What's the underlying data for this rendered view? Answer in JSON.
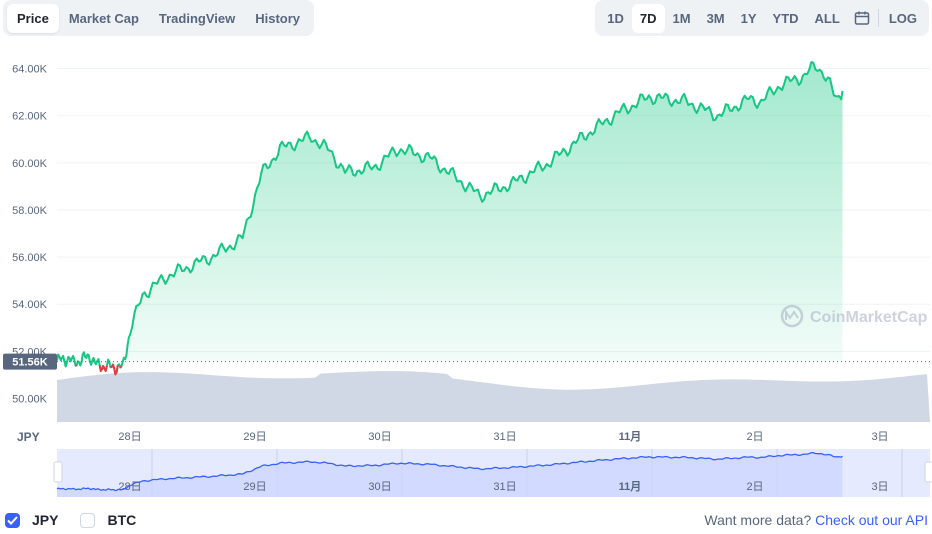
{
  "tabs": [
    "Price",
    "Market Cap",
    "TradingView",
    "History"
  ],
  "active_tab": "Price",
  "ranges": [
    "1D",
    "7D",
    "1M",
    "3M",
    "1Y",
    "YTD",
    "ALL"
  ],
  "active_range": "7D",
  "calendar_icon": "calendar-icon",
  "log_label": "LOG",
  "y_axis_ticks": [
    "50.00K",
    "52.00K",
    "54.00K",
    "56.00K",
    "58.00K",
    "60.00K",
    "62.00K",
    "64.00K"
  ],
  "current_price_label": "51.56K",
  "currency_label": "JPY",
  "watermark": "CoinMarketCap",
  "legend": [
    {
      "label": "JPY",
      "checked": true
    },
    {
      "label": "BTC",
      "checked": false
    }
  ],
  "api_text": "Want more data?",
  "api_link": "Check out our API",
  "colors": {
    "up": "#16c784",
    "down": "#ea3943",
    "accent": "#3861fb",
    "volume": "#cfd6e4"
  },
  "chart_data": {
    "type": "area",
    "x_ticks": [
      "28日",
      "29日",
      "30日",
      "31日",
      "11月",
      "2日",
      "3日"
    ],
    "ylim": [
      49000,
      65000
    ],
    "price_x": [
      0,
      0.05,
      0.1,
      0.15,
      0.2,
      0.25,
      0.3,
      0.35,
      0.4,
      0.45,
      0.5,
      0.55,
      0.6,
      0.65,
      0.7,
      0.75,
      0.8,
      0.85,
      0.9,
      0.95,
      1,
      1.05,
      1.1,
      1.15,
      1.2,
      1.25,
      1.3,
      1.35,
      1.4,
      1.45,
      1.5,
      1.55,
      1.6,
      1.65,
      1.7,
      1.75,
      1.8,
      1.85,
      1.9,
      1.95,
      2,
      2.05,
      2.1,
      2.15,
      2.2,
      2.25,
      2.3,
      2.35,
      2.4,
      2.45,
      2.5,
      2.55,
      2.6,
      2.65,
      2.7,
      2.75,
      2.8,
      2.85,
      2.9,
      2.95,
      3,
      3.05,
      3.1,
      3.15,
      3.2,
      3.25,
      3.3,
      3.35,
      3.4,
      3.45,
      3.5,
      3.55,
      3.6,
      3.65,
      3.7,
      3.75,
      3.8,
      3.85,
      3.9,
      3.95,
      4,
      4.05,
      4.1,
      4.15,
      4.2,
      4.25,
      4.3,
      4.35,
      4.4,
      4.45,
      4.5,
      4.55,
      4.6,
      4.65,
      4.7,
      4.75,
      4.8,
      4.85,
      4.9,
      4.95,
      5,
      5.05,
      5.1,
      5.15,
      5.2,
      5.25,
      5.3,
      5.35,
      5.4,
      5.45,
      5.5,
      5.55,
      5.6,
      5.65,
      5.7,
      5.75,
      5.8,
      5.85,
      5.9,
      5.95,
      6,
      6.05,
      6.1,
      6.15,
      6.2,
      6.25,
      6.3,
      6.35,
      6.4
    ],
    "price_y": [
      51600,
      51900,
      51800,
      51500,
      51700,
      51600,
      51450,
      51650,
      51550,
      51700,
      51500,
      51400,
      51600,
      51550,
      51700,
      51900,
      53900,
      54400,
      54200,
      54600,
      54800,
      55100,
      55400,
      55700,
      55500,
      55900,
      56400,
      56600,
      56400,
      56200,
      56100,
      56500,
      56900,
      57300,
      57900,
      58800,
      60000,
      60500,
      60700,
      60400,
      61300,
      60400,
      60800,
      60500,
      60200,
      59700,
      59500,
      59300,
      59700,
      59900,
      59400,
      59600,
      60000,
      60600,
      60300,
      60700,
      60400,
      59800,
      59300,
      59000,
      58500,
      58600,
      58800,
      59100,
      59400,
      59700,
      60300,
      59900,
      59100,
      59400,
      60100,
      60800,
      61200,
      61600,
      61500,
      62000,
      62300,
      62500,
      62600,
      62300,
      62800,
      63000,
      62600,
      62100,
      62000,
      62300,
      62400,
      62900,
      63300,
      63600,
      64100,
      64200,
      63900,
      63400,
      63000,
      63300,
      63000,
      62900,
      63000,
      63100,
      63050,
      63100,
      63000,
      63050,
      63100,
      63050,
      63100,
      63080,
      63060,
      63080,
      63100,
      63080,
      63070,
      63080,
      63090,
      63080,
      63070,
      63080,
      63090,
      63080,
      63070,
      63080,
      63090,
      63080,
      63070,
      63080,
      63090,
      63080,
      63070
    ],
    "series": [
      {
        "name": "JPY",
        "x": [
          0,
          0.17,
          0.22,
          0.45,
          0.55,
          0.9,
          1.1,
          1.3,
          1.65,
          1.9,
          2.05,
          2.2,
          2.45,
          2.6,
          2.72,
          2.95,
          3.15,
          3.4,
          3.8,
          4.05,
          4.35,
          4.65,
          4.9,
          5.15,
          5.45,
          5.7,
          5.95,
          6.05,
          6.2,
          6.4,
          6.45,
          6.5,
          6.55,
          6.6,
          6.63,
          6.66,
          6.68,
          6.7
        ],
        "y": [
          51600,
          51700,
          51500,
          51800,
          51400,
          51300,
          54400,
          55200,
          56000,
          56800,
          59500,
          60600,
          61100,
          60500,
          59600,
          59800,
          60600,
          60200,
          58600,
          59100,
          60000,
          61200,
          62100,
          62800,
          62600,
          62000,
          62700,
          62600,
          63300,
          63700,
          64000,
          64100,
          63800,
          63300,
          62900,
          62700,
          62900,
          63050
        ]
      }
    ],
    "grid": true
  }
}
